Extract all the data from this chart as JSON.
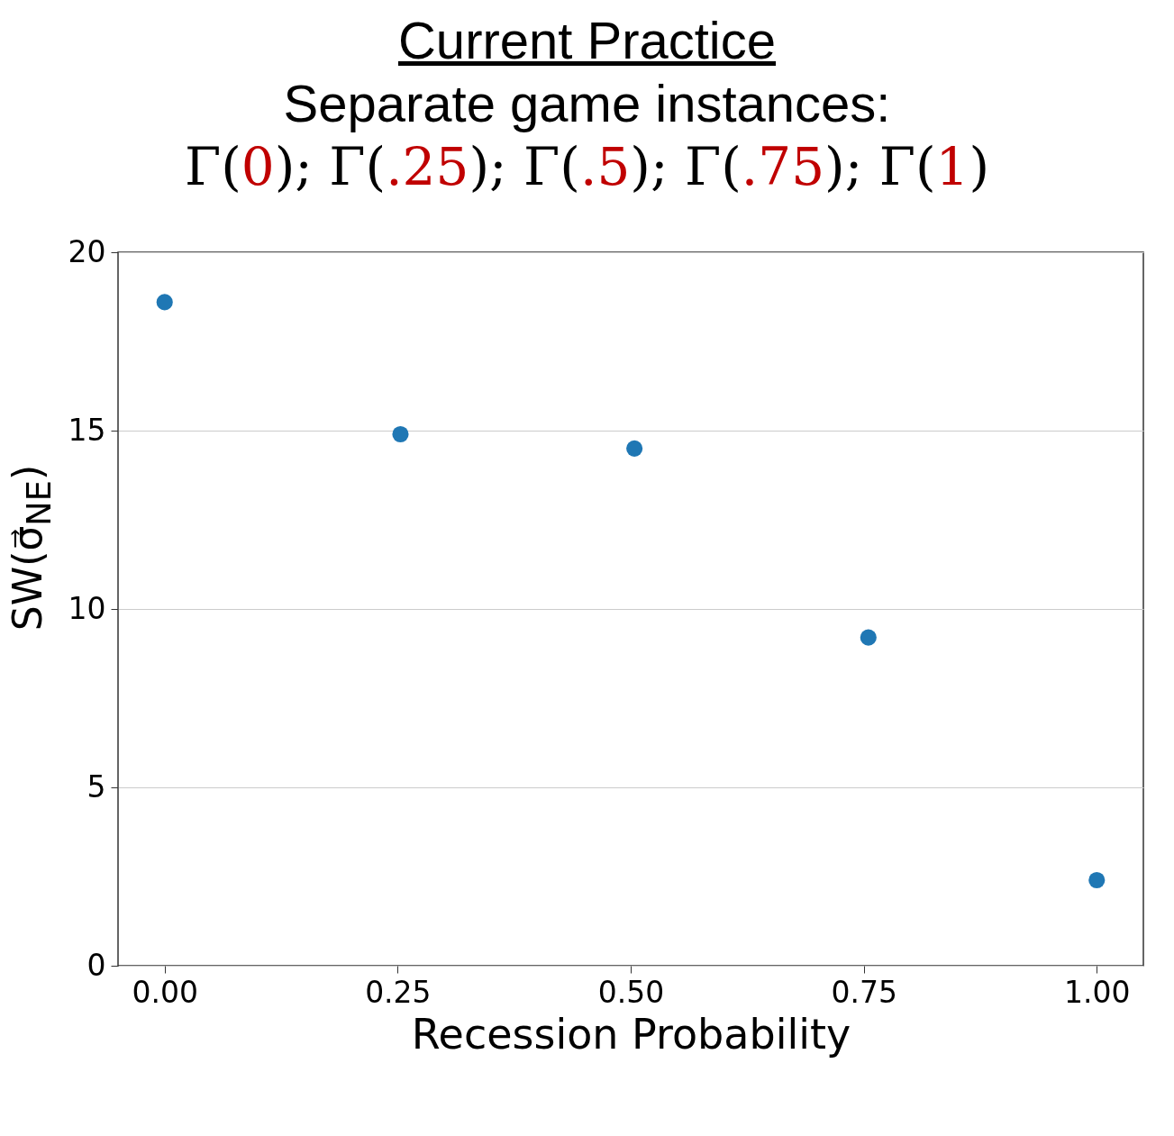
{
  "chart_data": {
    "type": "scatter",
    "title": "Current Practice",
    "subtitle": "Separate game instances:\nΓ(0); Γ(.25); Γ(.5); Γ(.75); Γ(1)",
    "xlabel": "Recession Probability",
    "ylabel": "SW(σ⃗$_{NE}$)",
    "series": [
      {
        "color": "#1f77b4",
        "x": [
          0,
          0.253,
          0.504,
          0.755,
          1
        ],
        "values": [
          18.6,
          14.9,
          14.5,
          9.2,
          2.4
        ]
      }
    ],
    "xlim": [
      -0.05,
      1.05
    ],
    "ylim": [
      0,
      20
    ],
    "xticks": [
      {
        "value": 0,
        "label": "0.00"
      },
      {
        "value": 0.25,
        "label": "0.25"
      },
      {
        "value": 0.5,
        "label": "0.50"
      },
      {
        "value": 0.75,
        "label": "0.75"
      },
      {
        "value": 1,
        "label": "1.00"
      }
    ],
    "yticks": [
      0,
      5,
      10,
      15,
      20
    ],
    "grid": "y",
    "marker": "circle"
  }
}
